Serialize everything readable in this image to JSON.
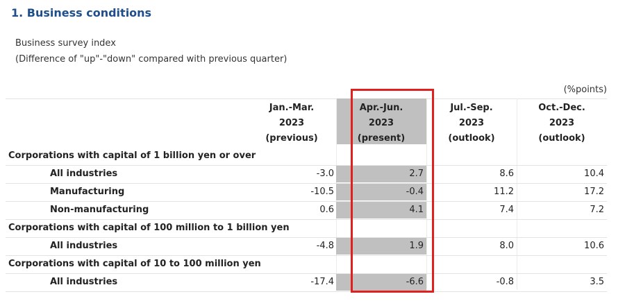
{
  "header": {
    "title": "1. Business conditions",
    "subtitle": "Business survey index",
    "note": "(Difference of \"up\"-\"down\" compared with previous quarter)",
    "unit": "(%points)"
  },
  "table": {
    "columns": [
      [
        "Jan.-Mar.",
        "2023",
        "(previous)"
      ],
      [
        "Apr.-Jun.",
        "2023",
        "(present)"
      ],
      [
        "Jul.-Sep.",
        "2023",
        "(outlook)"
      ],
      [
        "Oct.-Dec.",
        "2023",
        "(outlook)"
      ]
    ],
    "groups": [
      {
        "label": "Corporations with capital of 1 billion yen or over",
        "rows": [
          {
            "label": "All industries",
            "values": [
              "-3.0",
              "2.7",
              "8.6",
              "10.4"
            ]
          },
          {
            "label": "Manufacturing",
            "values": [
              "-10.5",
              "-0.4",
              "11.2",
              "17.2"
            ]
          },
          {
            "label": "Non-manufacturing",
            "values": [
              "0.6",
              "4.1",
              "7.4",
              "7.2"
            ]
          }
        ]
      },
      {
        "label": "Corporations with capital of 100 million to 1 billion yen",
        "rows": [
          {
            "label": "All industries",
            "values": [
              "-4.8",
              "1.9",
              "8.0",
              "10.6"
            ]
          }
        ]
      },
      {
        "label": "Corporations with capital of 10 to 100 million yen",
        "rows": [
          {
            "label": "All industries",
            "values": [
              "-17.4",
              "-6.6",
              "-0.8",
              "3.5"
            ]
          }
        ]
      }
    ]
  }
}
